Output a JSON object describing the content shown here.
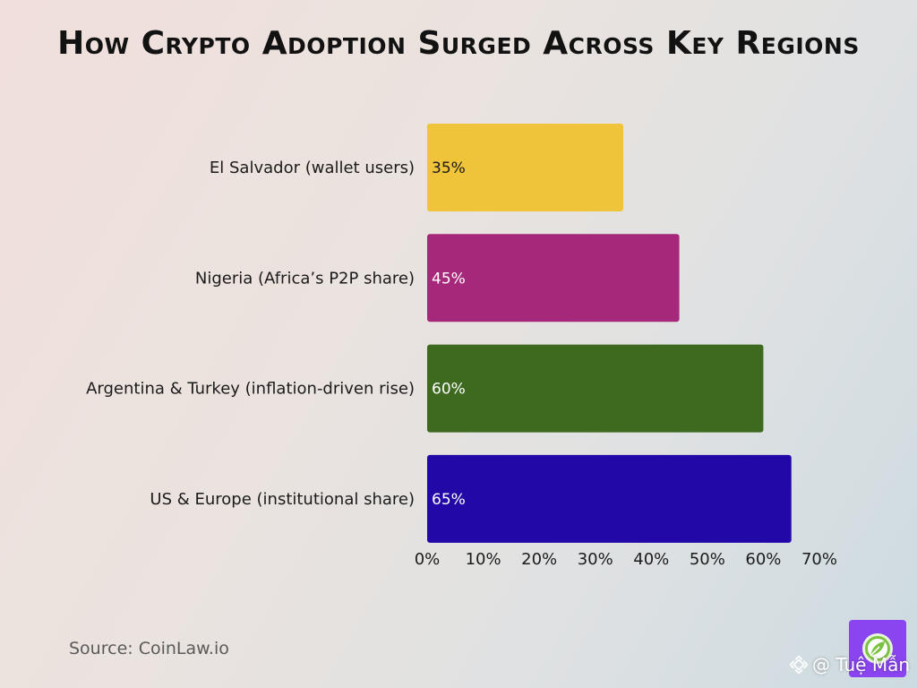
{
  "chart_data": {
    "type": "bar",
    "orientation": "horizontal",
    "title": "How Crypto Adoption Surged Across Key Regions",
    "categories": [
      "El Salvador (wallet users)",
      "Nigeria (Africa’s P2P share)",
      "Argentina & Turkey (inflation-driven rise)",
      "US & Europe (institutional share)"
    ],
    "values": [
      35,
      45,
      60,
      65
    ],
    "value_labels": [
      "35%",
      "45%",
      "60%",
      "65%"
    ],
    "colors": [
      "#efc43a",
      "#a6287a",
      "#3d6a1f",
      "#2308a8"
    ],
    "value_label_colors": [
      "#1b1b1b",
      "#ffffff",
      "#ffffff",
      "#ffffff"
    ],
    "x_ticks": [
      0,
      10,
      20,
      30,
      40,
      50,
      60,
      70
    ],
    "x_tick_labels": [
      "0%",
      "10%",
      "20%",
      "30%",
      "40%",
      "50%",
      "60%",
      "70%"
    ],
    "xlim": [
      0,
      70
    ],
    "xlabel": "",
    "ylabel": "",
    "grid": false,
    "legend": "none"
  },
  "source": "Source: CoinLaw.io",
  "watermark": {
    "text": "@ Tuệ Mẫn",
    "icon": "binance-diamond-icon"
  },
  "logo": {
    "icon": "compass-leaf-icon",
    "background": "#8a45f0"
  }
}
